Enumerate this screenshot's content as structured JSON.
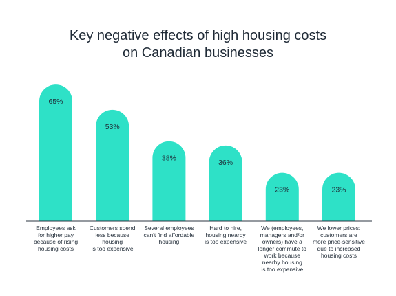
{
  "chart_data": {
    "type": "bar",
    "title_lines": [
      "Key negative effects of high housing costs",
      "on Canadian businesses"
    ],
    "categories": [
      "Employees ask\nfor higher pay\nbecause of rising\nhousing costs",
      "Customers spend\nless because housing\nis too expensive",
      "Several employees\ncan't find affordable\nhousing",
      "Hard to hire,\nhousing nearby\nis too expensive",
      "We (employees,\nmanagers and/or\nowners) have a\nlonger commute to\nwork because\nnearby housing\nis too expensive",
      "We lower prices:\ncustomers are\nmore price-sensitive\ndue to increased\nhousing costs"
    ],
    "values": [
      65,
      53,
      38,
      36,
      23,
      23
    ],
    "value_labels": [
      "65%",
      "53%",
      "38%",
      "36%",
      "23%",
      "23%"
    ],
    "unit": "%",
    "ylim": [
      0,
      70
    ],
    "grid": false,
    "legend": "none",
    "colors": {
      "bar": "#2ee1c7",
      "axis": "#2b3440",
      "text": "#1f2a36"
    }
  }
}
